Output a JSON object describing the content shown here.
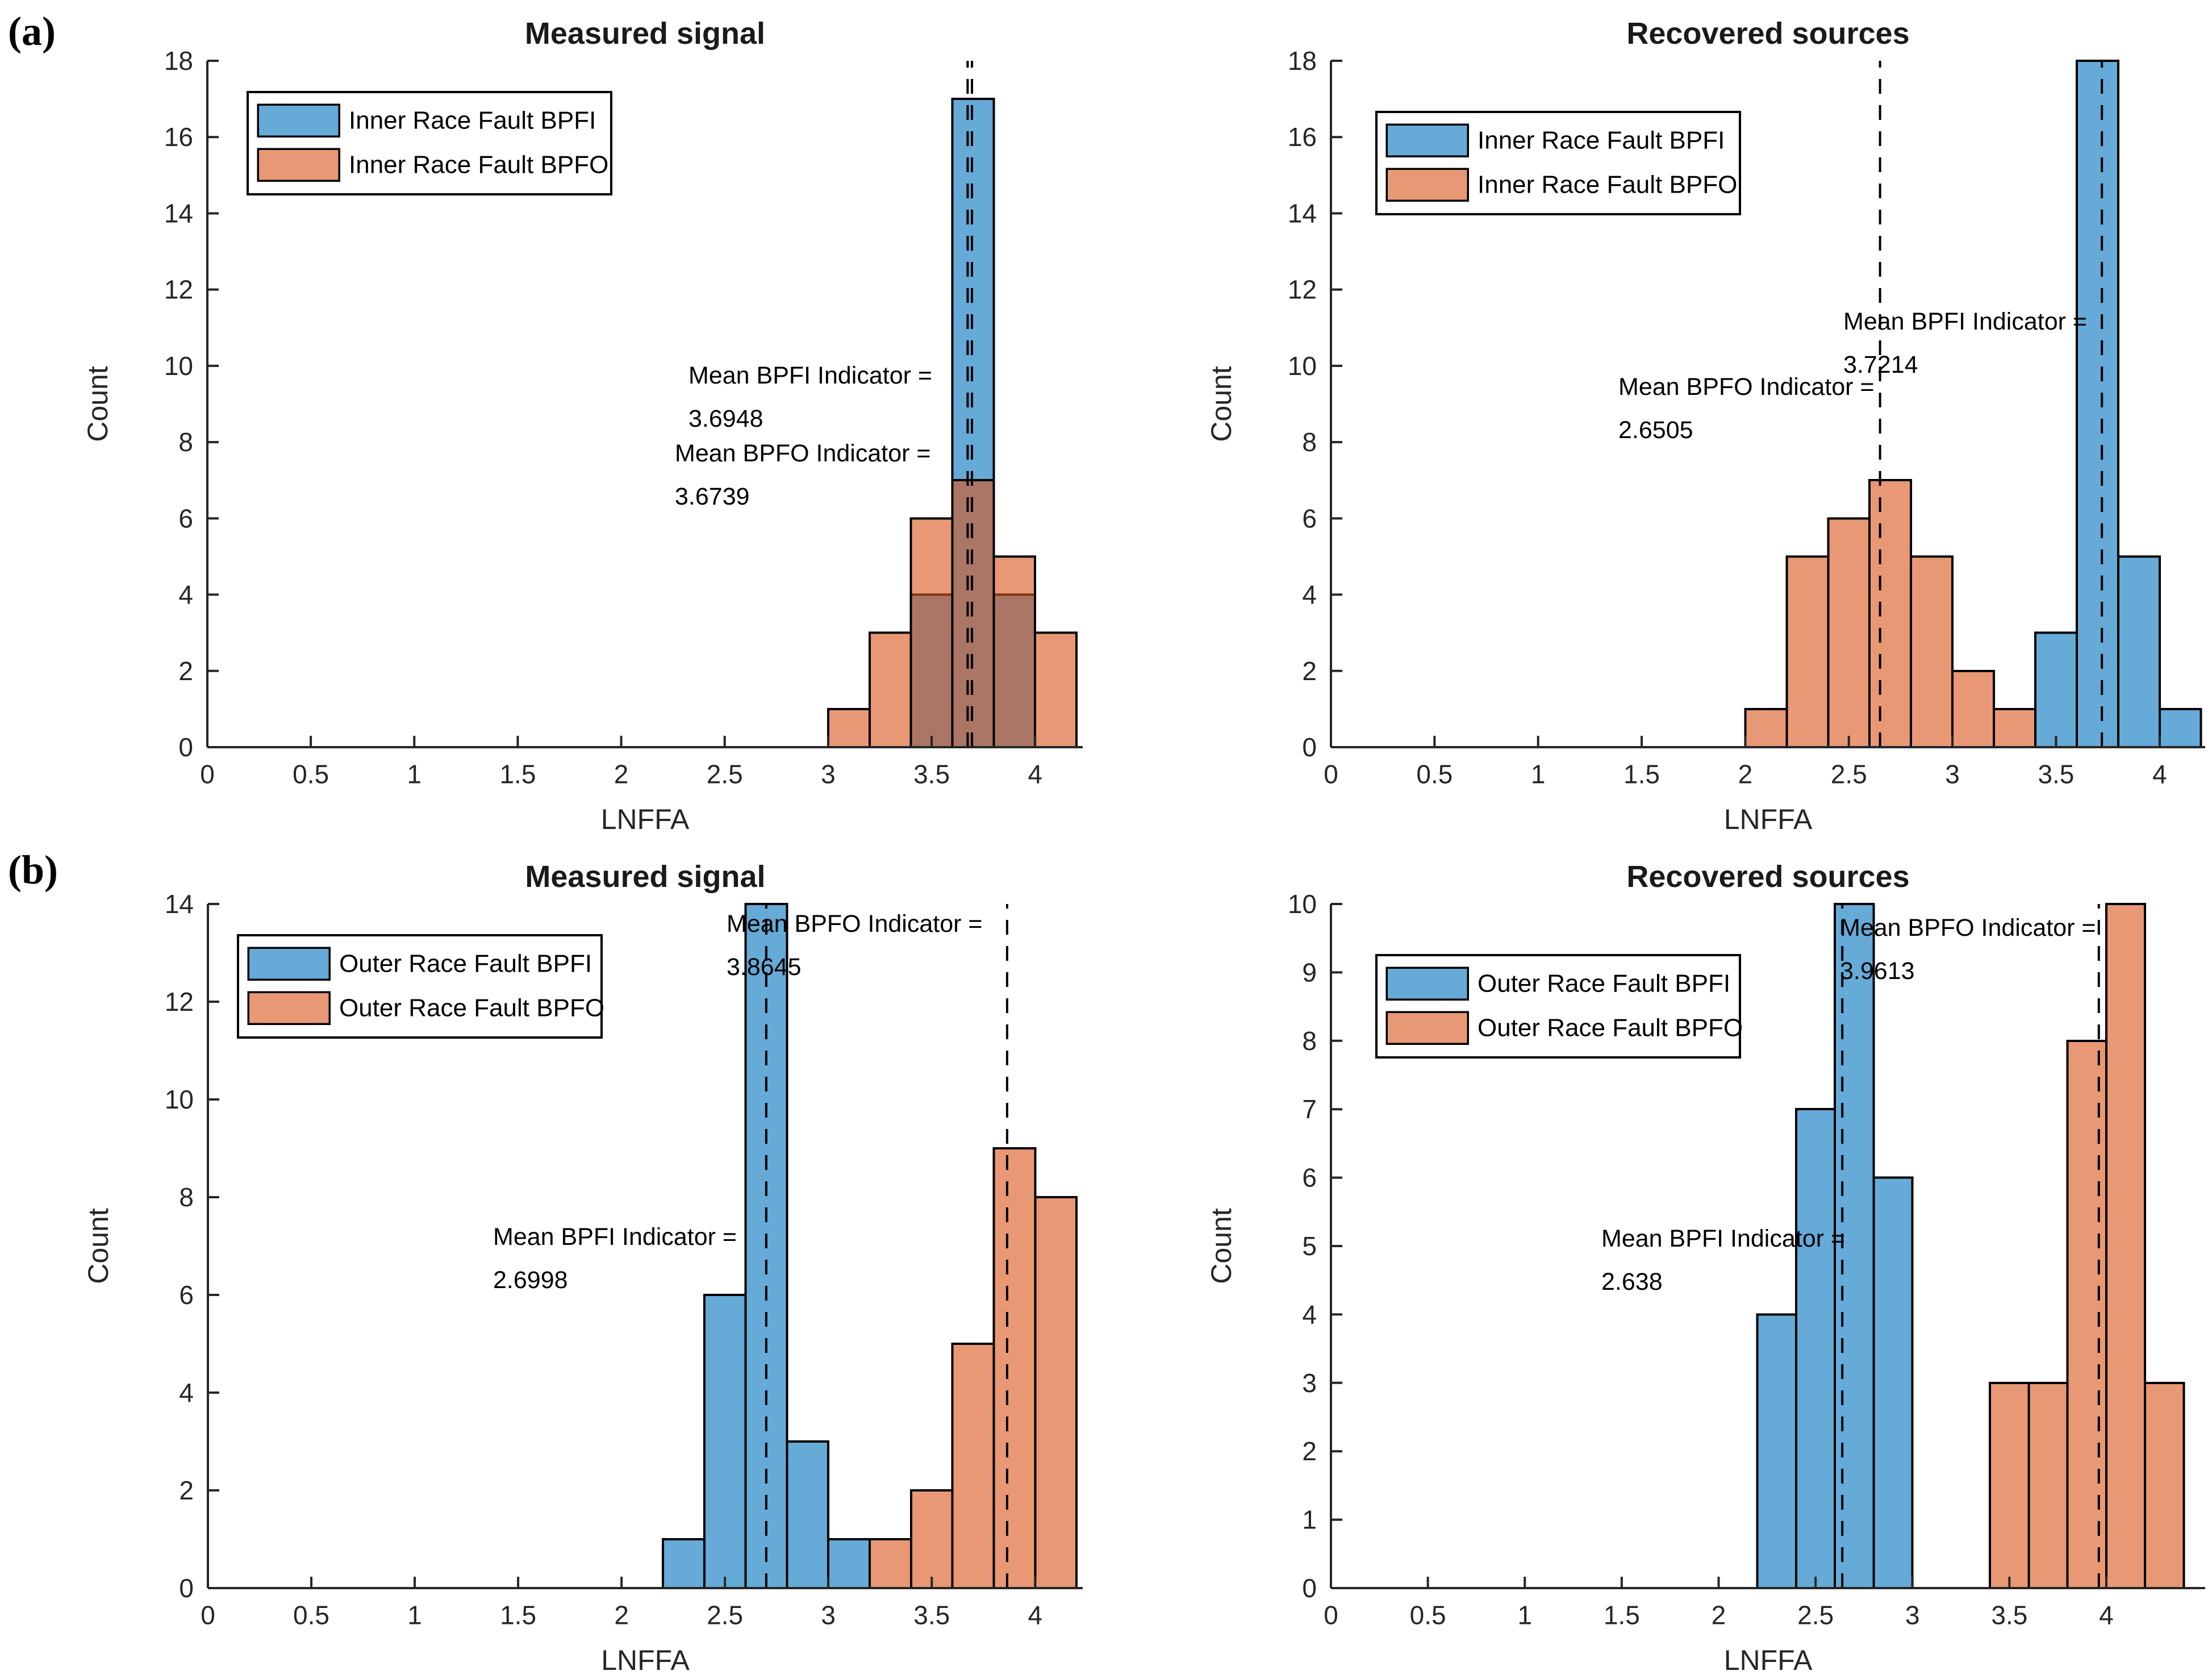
{
  "chart_meta": {
    "row_labels": [
      "(a)",
      "(b)"
    ],
    "background": "#ffffff",
    "axis_color": "#262626",
    "edge_color": "#000000",
    "fill_alpha": 0.6
  },
  "chart_data": [
    {
      "type": "bar",
      "subtype": "histogram",
      "position": "row-a-left",
      "title": "Measured signal",
      "xlabel": "LNFFA",
      "ylabel": "Count",
      "xlim": [
        0,
        4.23
      ],
      "ylim": [
        0,
        18
      ],
      "xticks": [
        0,
        0.5,
        1,
        1.5,
        2,
        2.5,
        3,
        3.5,
        4
      ],
      "ytick_step": 2,
      "grid": false,
      "legend_position": "northwest",
      "series": [
        {
          "name": "Inner Race Fault BPFI",
          "color": "#0072BD",
          "bin_start": 3.4,
          "bin_width": 0.2,
          "counts": [
            4,
            17,
            4
          ]
        },
        {
          "name": "Inner Race Fault BPFO",
          "color": "#D95319",
          "bin_start": 3.0,
          "bin_width": 0.2,
          "counts": [
            1,
            3,
            6,
            7,
            5,
            3
          ]
        }
      ],
      "mean_lines": [
        {
          "series": "BPFI",
          "value": 3.6948
        },
        {
          "series": "BPFO",
          "value": 3.6739
        }
      ],
      "annotations": [
        {
          "lines": [
            "Mean BPFI Indicator =",
            "3.6948"
          ],
          "px": [
            1212,
            675
          ]
        },
        {
          "lines": [
            "Mean BPFO Indicator =",
            "3.6739"
          ],
          "px": [
            1188,
            812
          ]
        }
      ]
    },
    {
      "type": "bar",
      "subtype": "histogram",
      "position": "row-a-right",
      "title": "Recovered sources",
      "xlabel": "LNFFA",
      "ylabel": "Count",
      "xlim": [
        0,
        4.22
      ],
      "ylim": [
        0,
        18
      ],
      "xticks": [
        0,
        0.5,
        1,
        1.5,
        2,
        2.5,
        3,
        3.5,
        4
      ],
      "ytick_step": 2,
      "grid": false,
      "legend_position": "northwest",
      "series": [
        {
          "name": "Inner Race Fault BPFI",
          "color": "#0072BD",
          "bin_start": 3.4,
          "bin_width": 0.2,
          "counts": [
            3,
            18,
            5,
            1
          ]
        },
        {
          "name": "Inner Race Fault BPFO",
          "color": "#D95319",
          "bin_start": 2.0,
          "bin_width": 0.2,
          "counts": [
            1,
            5,
            6,
            7,
            5,
            2,
            1
          ]
        }
      ],
      "mean_lines": [
        {
          "series": "BPFI",
          "value": 3.7214
        },
        {
          "series": "BPFO",
          "value": 2.6505
        }
      ],
      "annotations": [
        {
          "lines": [
            "Mean BPFI Indicator =",
            "3.7214"
          ],
          "px": [
            1298,
            580
          ]
        },
        {
          "lines": [
            "Mean BPFO Indicator =",
            "2.6505"
          ],
          "px": [
            902,
            695
          ]
        }
      ]
    },
    {
      "type": "bar",
      "subtype": "histogram",
      "position": "row-b-left",
      "title": "Measured signal",
      "xlabel": "LNFFA",
      "ylabel": "Count",
      "xlim": [
        0,
        4.23
      ],
      "ylim": [
        0,
        14
      ],
      "xticks": [
        0,
        0.5,
        1,
        1.5,
        2,
        2.5,
        3,
        3.5,
        4
      ],
      "ytick_step": 2,
      "grid": false,
      "legend_position": "northwest",
      "series": [
        {
          "name": "Outer Race Fault BPFI",
          "color": "#0072BD",
          "bin_start": 2.2,
          "bin_width": 0.2,
          "counts": [
            1,
            6,
            14,
            3,
            1
          ]
        },
        {
          "name": "Outer Race Fault BPFO",
          "color": "#D95319",
          "bin_start": 3.2,
          "bin_width": 0.2,
          "counts": [
            1,
            2,
            5,
            9,
            8
          ]
        }
      ],
      "mean_lines": [
        {
          "series": "BPFI",
          "value": 2.6998
        },
        {
          "series": "BPFO",
          "value": 3.8645
        }
      ],
      "annotations": [
        {
          "lines": [
            "Mean BPFO Indicator =",
            "3.8645"
          ],
          "px": [
            1279,
            163
          ]
        },
        {
          "lines": [
            "Mean BPFI Indicator =",
            "2.6998"
          ],
          "px": [
            868,
            714
          ]
        }
      ]
    },
    {
      "type": "bar",
      "subtype": "histogram",
      "position": "row-b-right",
      "title": "Recovered sources",
      "xlabel": "LNFFA",
      "ylabel": "Count",
      "xlim": [
        0,
        4.51
      ],
      "ylim": [
        0,
        10
      ],
      "xticks": [
        0,
        0.5,
        1,
        1.5,
        2,
        2.5,
        3,
        3.5,
        4
      ],
      "ytick_step": 1,
      "grid": false,
      "legend_position": "northwest",
      "series": [
        {
          "name": "Outer Race Fault BPFI",
          "color": "#0072BD",
          "bin_start": 2.2,
          "bin_width": 0.2,
          "counts": [
            4,
            7,
            10,
            6
          ]
        },
        {
          "name": "Outer Race Fault BPFO",
          "color": "#D95319",
          "bin_start": 3.4,
          "bin_width": 0.2,
          "counts": [
            3,
            3,
            8,
            10,
            3
          ]
        }
      ],
      "mean_lines": [
        {
          "series": "BPFI",
          "value": 2.638
        },
        {
          "series": "BPFO",
          "value": 3.9613
        }
      ],
      "annotations": [
        {
          "lines": [
            "Mean BPFO Indicator =",
            "3.9613"
          ],
          "px": [
            1292,
            170
          ]
        },
        {
          "lines": [
            "Mean BPFI Indicator =",
            "2.638"
          ],
          "px": [
            872,
            717
          ]
        }
      ]
    }
  ]
}
